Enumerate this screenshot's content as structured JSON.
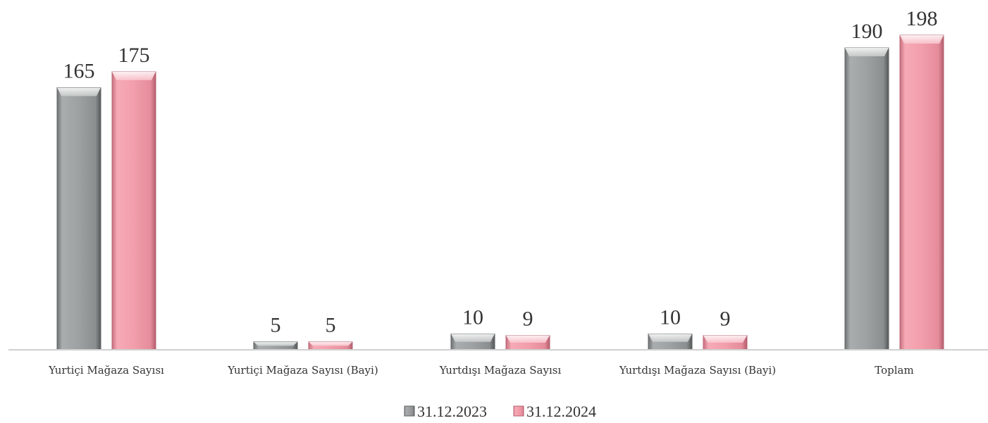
{
  "chart_data": {
    "type": "bar",
    "categories": [
      "Yurtiçi Mağaza Sayısı",
      "Yurtiçi Mağaza Sayısı (Bayi)",
      "Yurtdışı Mağaza Sayısı",
      "Yurtdışı Mağaza Sayısı (Bayi)",
      "Toplam"
    ],
    "series": [
      {
        "name": "31.12.2023",
        "values": [
          165,
          5,
          10,
          10,
          190
        ],
        "color": "#9a9e9e"
      },
      {
        "name": "31.12.2024",
        "values": [
          175,
          5,
          9,
          9,
          198
        ],
        "color": "#f2a0ac"
      }
    ],
    "ylim": [
      0,
      198
    ],
    "grid": false,
    "data_labels": true,
    "legend_position": "bottom"
  }
}
